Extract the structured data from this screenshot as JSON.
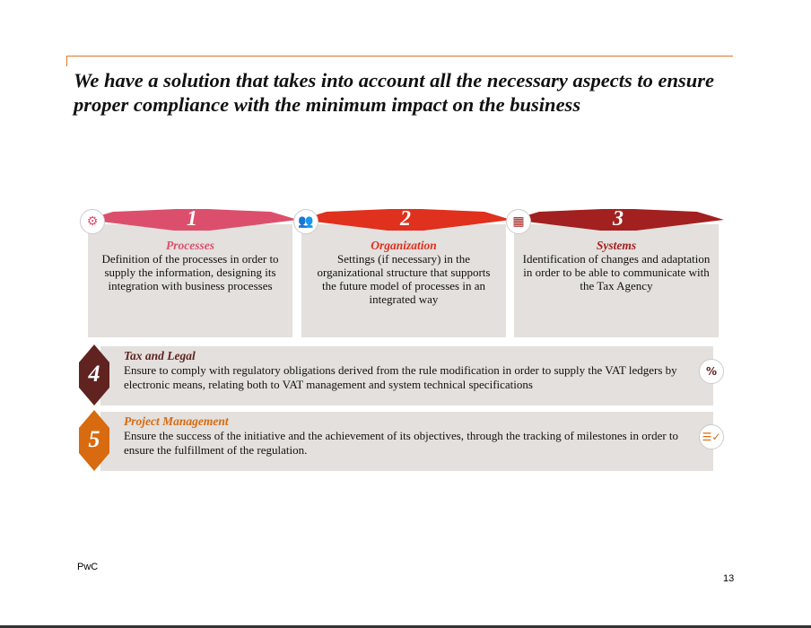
{
  "title": "We have a solution that takes into account all the necessary aspects to ensure proper compliance with the minimum impact on the business",
  "pillars": [
    {
      "number": "1",
      "heading": "Processes",
      "text": "Definition of the processes in order to supply the information, designing its integration with business processes",
      "color": "#dc4f6c",
      "icon": "gears-icon"
    },
    {
      "number": "2",
      "heading": "Organization",
      "text": "Settings (if necessary) in the organizational structure that supports the future model of processes in an integrated way",
      "color": "#e0301e",
      "icon": "people-icon"
    },
    {
      "number": "3",
      "heading": "Systems",
      "text": "Identification of changes and adaptation in order to be able to communicate with the Tax Agency",
      "color": "#a32020",
      "icon": "mobile-touch-icon"
    }
  ],
  "rows": [
    {
      "number": "4",
      "heading": "Tax and Legal",
      "text": "Ensure to comply with regulatory obligations derived from the rule modification in order to supply the VAT ledgers by electronic means,  relating both to VAT management and system technical specifications",
      "color": "#602320",
      "icon": "percent-icon",
      "glyph": "%"
    },
    {
      "number": "5",
      "heading": "Project Management",
      "text": "Ensure the success of the initiative and the achievement of its objectives, through the tracking of milestones in order to ensure the fulfillment of the regulation.",
      "color": "#d86a0f",
      "icon": "checklist-icon",
      "glyph": "☰✓"
    }
  ],
  "footer": {
    "brand": "PwC",
    "page": "13"
  }
}
